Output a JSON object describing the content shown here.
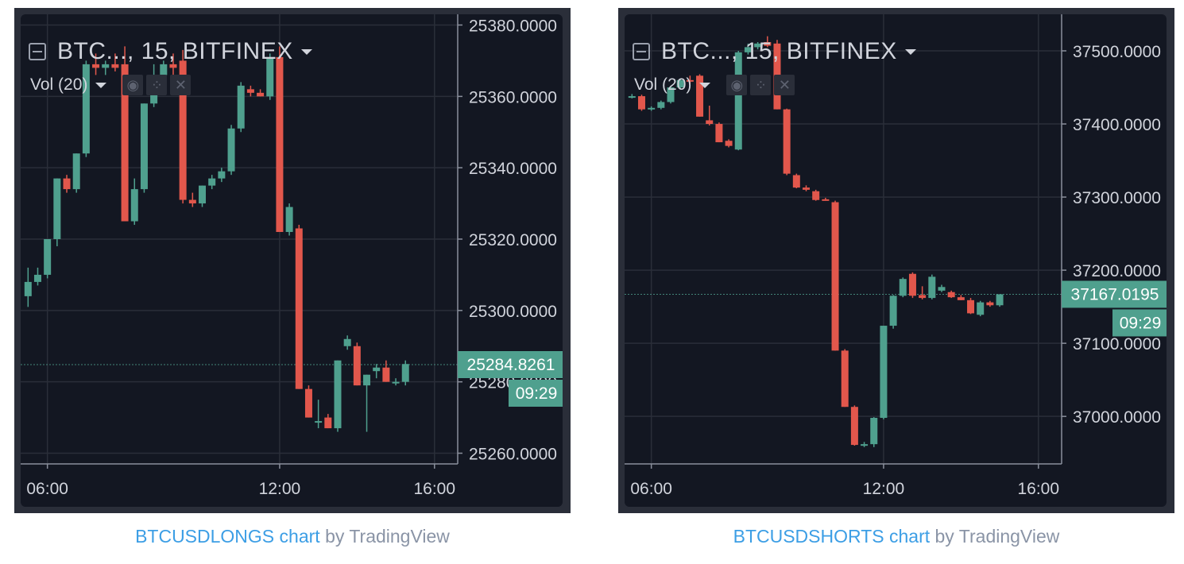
{
  "colors": {
    "up": "#4fa08e",
    "down": "#e2574c",
    "background": "#131722",
    "grid": "#2a2e39",
    "text": "#d1d4dc",
    "link": "#3c9ee5"
  },
  "charts": [
    {
      "id": "longs",
      "legend_symbol": "BTC...",
      "interval": ", 15, BITFINEX",
      "vol_label": "Vol (20)",
      "icons": [
        "eye-icon",
        "settings-icon",
        "close-icon"
      ],
      "icon_glyphs": [
        "◉",
        "⁘",
        "✕"
      ],
      "price_label": "25284.8261",
      "time_label": "09:29",
      "footer_link": "BTCUSDLONGS chart",
      "footer_by": "by",
      "footer_brand": "TradingView"
    },
    {
      "id": "shorts",
      "legend_symbol": "BTC...",
      "interval": ", 15, BITFINEX",
      "vol_label": "Vol (20)",
      "icons": [
        "eye-icon",
        "settings-icon",
        "close-icon"
      ],
      "icon_glyphs": [
        "◉",
        "⁘",
        "✕"
      ],
      "price_label": "37167.0195",
      "time_label": "09:29",
      "footer_link": "BTCUSDSHORTS chart",
      "footer_by": "by",
      "footer_brand": "TradingView"
    }
  ],
  "chart_data": [
    {
      "type": "candlestick",
      "title": "BTCUSDLONGS",
      "x_ticks": [
        "06:00",
        "12:00",
        "16:00"
      ],
      "x_tick_hours": [
        6,
        12,
        16
      ],
      "y_ticks": [
        "25380.0000",
        "25360.0000",
        "25340.0000",
        "25320.0000",
        "25300.0000",
        "25280.0000",
        "25260.0000"
      ],
      "ylim": [
        25257,
        25383
      ],
      "xlim_hours": [
        5.35,
        16.6
      ],
      "last_price": 25284.8261,
      "candles": [
        {
          "t": 5.5,
          "o": 25304,
          "h": 25312,
          "l": 25301,
          "c": 25308
        },
        {
          "t": 5.75,
          "o": 25308,
          "h": 25312,
          "l": 25307,
          "c": 25310
        },
        {
          "t": 6.0,
          "o": 25310,
          "h": 25320,
          "l": 25309,
          "c": 25320
        },
        {
          "t": 6.25,
          "o": 25320,
          "h": 25337,
          "l": 25318,
          "c": 25337
        },
        {
          "t": 6.5,
          "o": 25337,
          "h": 25338,
          "l": 25333,
          "c": 25334
        },
        {
          "t": 6.75,
          "o": 25334,
          "h": 25344,
          "l": 25333,
          "c": 25344
        },
        {
          "t": 7.0,
          "o": 25344,
          "h": 25370,
          "l": 25343,
          "c": 25369
        },
        {
          "t": 7.25,
          "o": 25369,
          "h": 25372,
          "l": 25366,
          "c": 25368
        },
        {
          "t": 7.5,
          "o": 25368,
          "h": 25370,
          "l": 25366,
          "c": 25369
        },
        {
          "t": 7.75,
          "o": 25369,
          "h": 25372,
          "l": 25367,
          "c": 25368
        },
        {
          "t": 8.0,
          "o": 25369,
          "h": 25374,
          "l": 25325,
          "c": 25325
        },
        {
          "t": 8.25,
          "o": 25325,
          "h": 25337,
          "l": 25324,
          "c": 25334
        },
        {
          "t": 8.5,
          "o": 25334,
          "h": 25358,
          "l": 25333,
          "c": 25358
        },
        {
          "t": 8.75,
          "o": 25358,
          "h": 25369,
          "l": 25357,
          "c": 25366
        },
        {
          "t": 9.0,
          "o": 25366,
          "h": 25370,
          "l": 25364,
          "c": 25369
        },
        {
          "t": 9.25,
          "o": 25369,
          "h": 25372,
          "l": 25366,
          "c": 25368
        },
        {
          "t": 9.5,
          "o": 25370,
          "h": 25373,
          "l": 25330,
          "c": 25331
        },
        {
          "t": 9.75,
          "o": 25331,
          "h": 25333,
          "l": 25329,
          "c": 25330
        },
        {
          "t": 10.0,
          "o": 25330,
          "h": 25335,
          "l": 25329,
          "c": 25335
        },
        {
          "t": 10.25,
          "o": 25335,
          "h": 25338,
          "l": 25334,
          "c": 25337
        },
        {
          "t": 10.5,
          "o": 25337,
          "h": 25340,
          "l": 25336,
          "c": 25339
        },
        {
          "t": 10.75,
          "o": 25339,
          "h": 25352,
          "l": 25338,
          "c": 25351
        },
        {
          "t": 11.0,
          "o": 25351,
          "h": 25364,
          "l": 25350,
          "c": 25363
        },
        {
          "t": 11.25,
          "o": 25362,
          "h": 25363,
          "l": 25360,
          "c": 25361
        },
        {
          "t": 11.5,
          "o": 25361,
          "h": 25362,
          "l": 25360,
          "c": 25360
        },
        {
          "t": 11.75,
          "o": 25360,
          "h": 25372,
          "l": 25359,
          "c": 25371
        },
        {
          "t": 12.0,
          "o": 25371,
          "h": 25374,
          "l": 25322,
          "c": 25322
        },
        {
          "t": 12.25,
          "o": 25322,
          "h": 25330,
          "l": 25321,
          "c": 25329
        },
        {
          "t": 12.5,
          "o": 25323,
          "h": 25324,
          "l": 25278,
          "c": 25278
        },
        {
          "t": 12.75,
          "o": 25278,
          "h": 25279,
          "l": 25270,
          "c": 25270
        },
        {
          "t": 13.0,
          "o": 25269,
          "h": 25275,
          "l": 25267,
          "c": 25269
        },
        {
          "t": 13.25,
          "o": 25270,
          "h": 25271,
          "l": 25267,
          "c": 25267
        },
        {
          "t": 13.5,
          "o": 25267,
          "h": 25286,
          "l": 25266,
          "c": 25286
        },
        {
          "t": 13.75,
          "o": 25290,
          "h": 25293,
          "l": 25289,
          "c": 25292
        },
        {
          "t": 14.0,
          "o": 25290,
          "h": 25291,
          "l": 25279,
          "c": 25279
        },
        {
          "t": 14.25,
          "o": 25279,
          "h": 25282,
          "l": 25266,
          "c": 25282
        },
        {
          "t": 14.5,
          "o": 25283,
          "h": 25285,
          "l": 25281,
          "c": 25284
        },
        {
          "t": 14.75,
          "o": 25284,
          "h": 25286,
          "l": 25280,
          "c": 25280
        },
        {
          "t": 15.0,
          "o": 25280,
          "h": 25281,
          "l": 25279,
          "c": 25280
        },
        {
          "t": 15.25,
          "o": 25280,
          "h": 25286,
          "l": 25279,
          "c": 25285
        }
      ]
    },
    {
      "type": "candlestick",
      "title": "BTCUSDSHORTS",
      "x_ticks": [
        "06:00",
        "12:00",
        "16:00"
      ],
      "x_tick_hours": [
        6,
        12,
        16
      ],
      "y_ticks": [
        "37500.0000",
        "37400.0000",
        "37300.0000",
        "37200.0000",
        "37100.0000",
        "37000.0000"
      ],
      "ylim": [
        36935,
        37550
      ],
      "xlim_hours": [
        5.35,
        16.6
      ],
      "last_price": 37167.0195,
      "candles": [
        {
          "t": 5.5,
          "o": 37438,
          "h": 37441,
          "l": 37435,
          "c": 37438
        },
        {
          "t": 5.75,
          "o": 37438,
          "h": 37440,
          "l": 37418,
          "c": 37420
        },
        {
          "t": 6.0,
          "o": 37420,
          "h": 37424,
          "l": 37418,
          "c": 37422
        },
        {
          "t": 6.25,
          "o": 37422,
          "h": 37432,
          "l": 37420,
          "c": 37430
        },
        {
          "t": 6.5,
          "o": 37430,
          "h": 37452,
          "l": 37428,
          "c": 37450
        },
        {
          "t": 6.75,
          "o": 37450,
          "h": 37462,
          "l": 37448,
          "c": 37460
        },
        {
          "t": 7.0,
          "o": 37460,
          "h": 37466,
          "l": 37455,
          "c": 37458
        },
        {
          "t": 7.25,
          "o": 37466,
          "h": 37468,
          "l": 37410,
          "c": 37410
        },
        {
          "t": 7.5,
          "o": 37405,
          "h": 37425,
          "l": 37398,
          "c": 37400
        },
        {
          "t": 7.75,
          "o": 37400,
          "h": 37402,
          "l": 37375,
          "c": 37375
        },
        {
          "t": 8.0,
          "o": 37377,
          "h": 37379,
          "l": 37368,
          "c": 37370
        },
        {
          "t": 8.25,
          "o": 37365,
          "h": 37500,
          "l": 37364,
          "c": 37498
        },
        {
          "t": 8.5,
          "o": 37498,
          "h": 37510,
          "l": 37495,
          "c": 37505
        },
        {
          "t": 8.75,
          "o": 37505,
          "h": 37512,
          "l": 37502,
          "c": 37510
        },
        {
          "t": 9.0,
          "o": 37512,
          "h": 37520,
          "l": 37505,
          "c": 37507
        },
        {
          "t": 9.25,
          "o": 37510,
          "h": 37515,
          "l": 37420,
          "c": 37420
        },
        {
          "t": 9.5,
          "o": 37420,
          "h": 37421,
          "l": 37330,
          "c": 37332
        },
        {
          "t": 9.75,
          "o": 37330,
          "h": 37332,
          "l": 37312,
          "c": 37313
        },
        {
          "t": 10.0,
          "o": 37313,
          "h": 37316,
          "l": 37308,
          "c": 37310
        },
        {
          "t": 10.25,
          "o": 37308,
          "h": 37310,
          "l": 37295,
          "c": 37296
        },
        {
          "t": 10.5,
          "o": 37297,
          "h": 37299,
          "l": 37295,
          "c": 37296
        },
        {
          "t": 10.75,
          "o": 37293,
          "h": 37295,
          "l": 37090,
          "c": 37090
        },
        {
          "t": 11.0,
          "o": 37090,
          "h": 37092,
          "l": 37013,
          "c": 37013
        },
        {
          "t": 11.25,
          "o": 37013,
          "h": 37015,
          "l": 36960,
          "c": 36961
        },
        {
          "t": 11.5,
          "o": 36961,
          "h": 36965,
          "l": 36958,
          "c": 36962
        },
        {
          "t": 11.75,
          "o": 36962,
          "h": 36999,
          "l": 36958,
          "c": 36998
        },
        {
          "t": 12.0,
          "o": 36998,
          "h": 37124,
          "l": 36996,
          "c": 37124
        },
        {
          "t": 12.25,
          "o": 37124,
          "h": 37166,
          "l": 37120,
          "c": 37165
        },
        {
          "t": 12.5,
          "o": 37165,
          "h": 37190,
          "l": 37163,
          "c": 37188
        },
        {
          "t": 12.75,
          "o": 37195,
          "h": 37197,
          "l": 37162,
          "c": 37165
        },
        {
          "t": 13.0,
          "o": 37166,
          "h": 37178,
          "l": 37160,
          "c": 37162
        },
        {
          "t": 13.25,
          "o": 37162,
          "h": 37194,
          "l": 37160,
          "c": 37191
        },
        {
          "t": 13.5,
          "o": 37172,
          "h": 37180,
          "l": 37170,
          "c": 37177
        },
        {
          "t": 13.75,
          "o": 37170,
          "h": 37172,
          "l": 37162,
          "c": 37163
        },
        {
          "t": 14.0,
          "o": 37163,
          "h": 37166,
          "l": 37159,
          "c": 37159
        },
        {
          "t": 14.25,
          "o": 37159,
          "h": 37162,
          "l": 37140,
          "c": 37141
        },
        {
          "t": 14.5,
          "o": 37139,
          "h": 37158,
          "l": 37137,
          "c": 37156
        },
        {
          "t": 14.75,
          "o": 37156,
          "h": 37158,
          "l": 37150,
          "c": 37152
        },
        {
          "t": 15.0,
          "o": 37152,
          "h": 37167,
          "l": 37150,
          "c": 37167
        }
      ]
    }
  ]
}
